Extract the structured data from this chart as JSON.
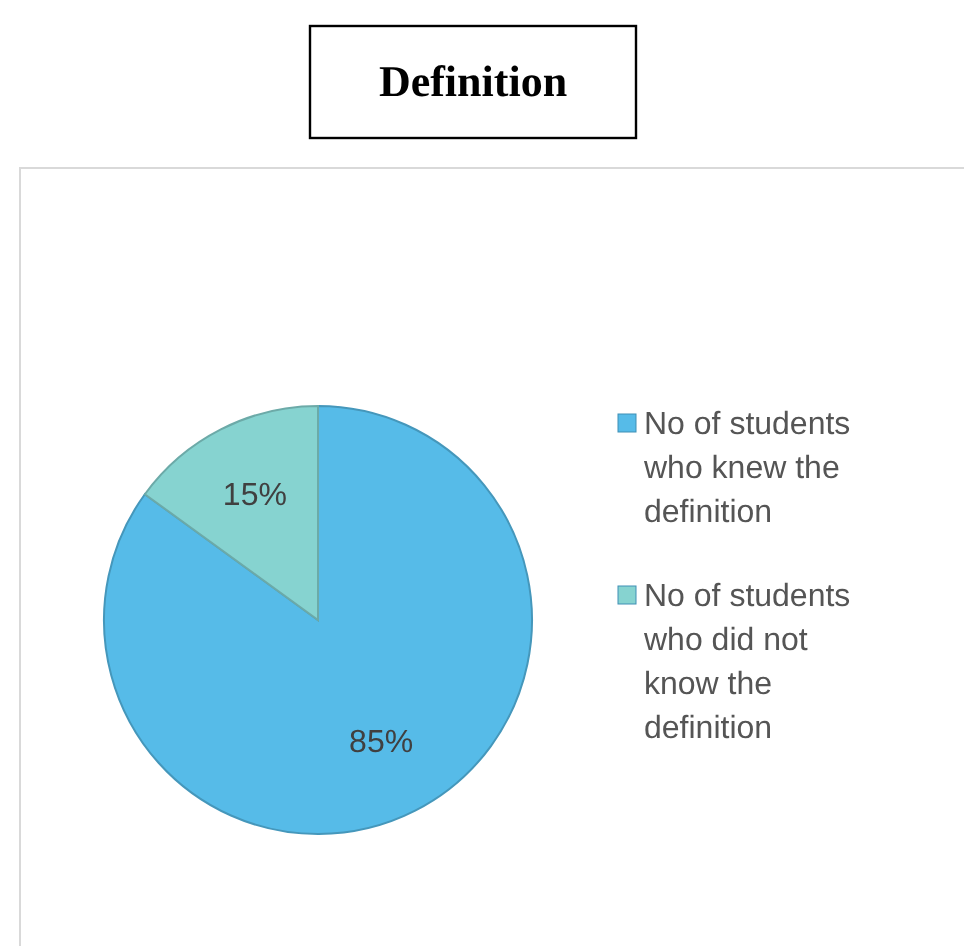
{
  "chart_data": {
    "type": "pie",
    "title": "Definition",
    "categories": [
      "No of students who knew the definition",
      "No of students who did not know the definition"
    ],
    "values": [
      85,
      15
    ],
    "colors": [
      "#56bbe8",
      "#86d3d0"
    ],
    "value_labels": [
      "85%",
      "15%"
    ],
    "legend": "right"
  }
}
